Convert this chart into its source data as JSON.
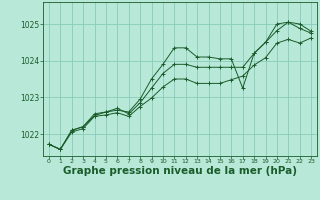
{
  "background_color": "#b8e8d8",
  "grid_color": "#88ccb8",
  "line_color": "#1a5c2a",
  "xlabel": "Graphe pression niveau de la mer (hPa)",
  "xlabel_fontsize": 7.5,
  "xlim": [
    -0.5,
    23.5
  ],
  "ylim": [
    1021.4,
    1025.6
  ],
  "yticks": [
    1022,
    1023,
    1024,
    1025
  ],
  "xticks": [
    0,
    1,
    2,
    3,
    4,
    5,
    6,
    7,
    8,
    9,
    10,
    11,
    12,
    13,
    14,
    15,
    16,
    17,
    18,
    19,
    20,
    21,
    22,
    23
  ],
  "series": [
    [
      1021.72,
      1021.58,
      1022.1,
      1022.2,
      1022.5,
      1022.6,
      1022.65,
      1022.6,
      1022.95,
      1023.5,
      1023.9,
      1024.35,
      1024.35,
      1024.1,
      1024.1,
      1024.05,
      1024.05,
      1023.25,
      1024.2,
      1024.5,
      1025.0,
      1025.05,
      1025.0,
      1024.8
    ],
    [
      1021.72,
      1021.58,
      1022.1,
      1022.2,
      1022.55,
      1022.6,
      1022.7,
      1022.55,
      1022.85,
      1023.25,
      1023.65,
      1023.9,
      1023.9,
      1023.82,
      1023.82,
      1023.82,
      1023.82,
      1023.82,
      1024.2,
      1024.5,
      1024.82,
      1025.05,
      1024.88,
      1024.75
    ],
    [
      1021.72,
      1021.58,
      1022.05,
      1022.15,
      1022.48,
      1022.52,
      1022.58,
      1022.48,
      1022.75,
      1022.98,
      1023.28,
      1023.5,
      1023.5,
      1023.38,
      1023.38,
      1023.38,
      1023.48,
      1023.58,
      1023.88,
      1024.08,
      1024.48,
      1024.58,
      1024.48,
      1024.62
    ]
  ]
}
